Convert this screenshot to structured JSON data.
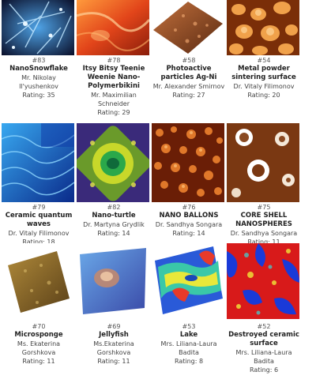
{
  "gallery": {
    "items": [
      {
        "number": "#83",
        "title": "NanoSnowflake",
        "author": "Mr. Nikolay Il'yushenkov",
        "rating": "Rating: 35",
        "image": "blue-snowflake-micrograph"
      },
      {
        "number": "#78",
        "title": "Itsy Bitsy Teenie Weenie Nano-Polymerbikini",
        "author": "Mr. Maximilian Schneider",
        "rating": "Rating: 29",
        "image": "orange-polymer-micrograph"
      },
      {
        "number": "#58",
        "title": "Photoactive particles Ag-Ni",
        "author": "Mr. Alexander Smirnov",
        "rating": "Rating: 27",
        "image": "brown-3d-surface"
      },
      {
        "number": "#54",
        "title": "Metal powder sintering surface",
        "author": "Dr. Vitaly Filimonov",
        "rating": "Rating: 20",
        "image": "orange-sintered-particles"
      },
      {
        "number": "#79",
        "title": "Ceramic quantum waves",
        "author": "Dr. Vitaly Filimonov",
        "rating": "Rating: 18",
        "image": "blue-wave-surface"
      },
      {
        "number": "#82",
        "title": "Nano-turtle",
        "author": "Dr. Martyna Grydlik",
        "rating": "Rating: 14",
        "image": "green-turtle-pattern"
      },
      {
        "number": "#76",
        "title": "NANO BALLONS",
        "author": "Dr. Sandhya Songara",
        "rating": "Rating: 14",
        "image": "orange-nano-balloons"
      },
      {
        "number": "#75",
        "title": "CORE SHELL NANOSPHERES",
        "author": "Dr. Sandhya Songara",
        "rating": "Rating: 11",
        "image": "brown-core-shell-spheres"
      },
      {
        "number": "#70",
        "title": "Microsponge",
        "author": "Ms. Ekaterina Gorshkova",
        "rating": "Rating: 11",
        "image": "golden-sponge-surface"
      },
      {
        "number": "#69",
        "title": "Jellyfish",
        "author": "Ms.Ekaterina Gorshkova",
        "rating": "Rating: 11",
        "image": "blue-jellyfish-surface"
      },
      {
        "number": "#53",
        "title": "Lake",
        "author": "Mrs. Liliana-Laura Badita",
        "rating": "Rating: 8",
        "image": "rainbow-3d-lake-map"
      },
      {
        "number": "#52",
        "title": "Destroyed ceramic surface",
        "author": "Mrs. Liliana-Laura Badita",
        "rating": "Rating: 6",
        "image": "red-blue-ceramic-map"
      }
    ]
  }
}
